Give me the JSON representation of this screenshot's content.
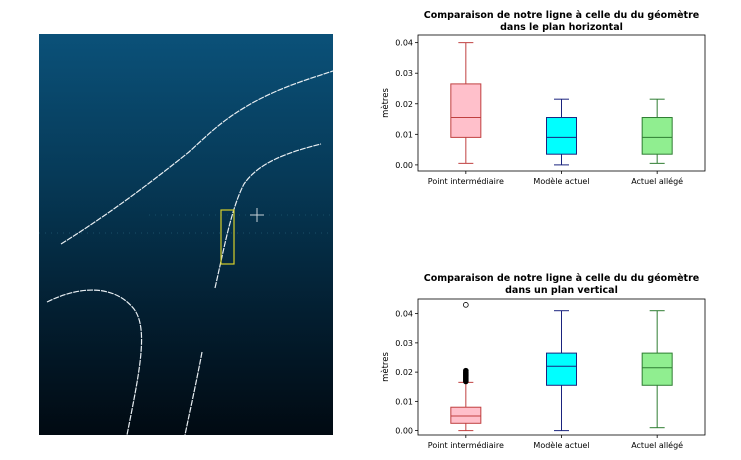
{
  "viewport": {
    "background_top": "#0b5179",
    "background_bottom": "#010a12",
    "line_color": "#e8eef2",
    "marker_color": "#d6cf2a",
    "icon": "crosshair-icon"
  },
  "chart_data": [
    {
      "type": "box",
      "title": "Comparaison de notre ligne à celle du du géomètre",
      "subtitle": "dans le plan horizontal",
      "xlabel": "",
      "ylabel": "mètres",
      "ylim": [
        -0.002,
        0.0425
      ],
      "yticks": [
        "0.00",
        "0.01",
        "0.02",
        "0.03",
        "0.04"
      ],
      "ytick_values": [
        0.0,
        0.01,
        0.02,
        0.03,
        0.04
      ],
      "grid": false,
      "series": [
        {
          "name": "Point intermédiaire",
          "fill": "#ffc0cb",
          "edge": "#c04040",
          "whislo": 0.0005,
          "q1": 0.009,
          "med": 0.0155,
          "q3": 0.0265,
          "whishi": 0.04,
          "fliers": []
        },
        {
          "name": "Modèle actuel",
          "fill": "#00ffff",
          "edge": "#1a237e",
          "whislo": 0.0,
          "q1": 0.0035,
          "med": 0.009,
          "q3": 0.0155,
          "whishi": 0.0215,
          "fliers": []
        },
        {
          "name": "Actuel allégé",
          "fill": "#90ee90",
          "edge": "#2e7d32",
          "whislo": 0.0005,
          "q1": 0.0035,
          "med": 0.009,
          "q3": 0.0155,
          "whishi": 0.0215,
          "fliers": []
        }
      ]
    },
    {
      "type": "box",
      "title": "Comparaison de notre ligne à celle du du géomètre",
      "subtitle": "dans un plan vertical",
      "xlabel": "",
      "ylabel": "mètres",
      "ylim": [
        -0.0015,
        0.045
      ],
      "yticks": [
        "0.00",
        "0.01",
        "0.02",
        "0.03",
        "0.04"
      ],
      "ytick_values": [
        0.0,
        0.01,
        0.02,
        0.03,
        0.04
      ],
      "grid": false,
      "series": [
        {
          "name": "Point intermédiaire",
          "fill": "#ffc0cb",
          "edge": "#c04040",
          "whislo": 0.0,
          "q1": 0.0025,
          "med": 0.005,
          "q3": 0.008,
          "whishi": 0.0165,
          "fliers": [
            0.0168,
            0.0172,
            0.0176,
            0.018,
            0.0184,
            0.0188,
            0.0192,
            0.0196,
            0.02,
            0.0205,
            0.043
          ]
        },
        {
          "name": "Modèle actuel",
          "fill": "#00ffff",
          "edge": "#1a237e",
          "whislo": 0.0,
          "q1": 0.0155,
          "med": 0.022,
          "q3": 0.0265,
          "whishi": 0.041,
          "fliers": []
        },
        {
          "name": "Actuel allégé",
          "fill": "#90ee90",
          "edge": "#2e7d32",
          "whislo": 0.001,
          "q1": 0.0155,
          "med": 0.0215,
          "q3": 0.0265,
          "whishi": 0.041,
          "fliers": []
        }
      ]
    }
  ]
}
